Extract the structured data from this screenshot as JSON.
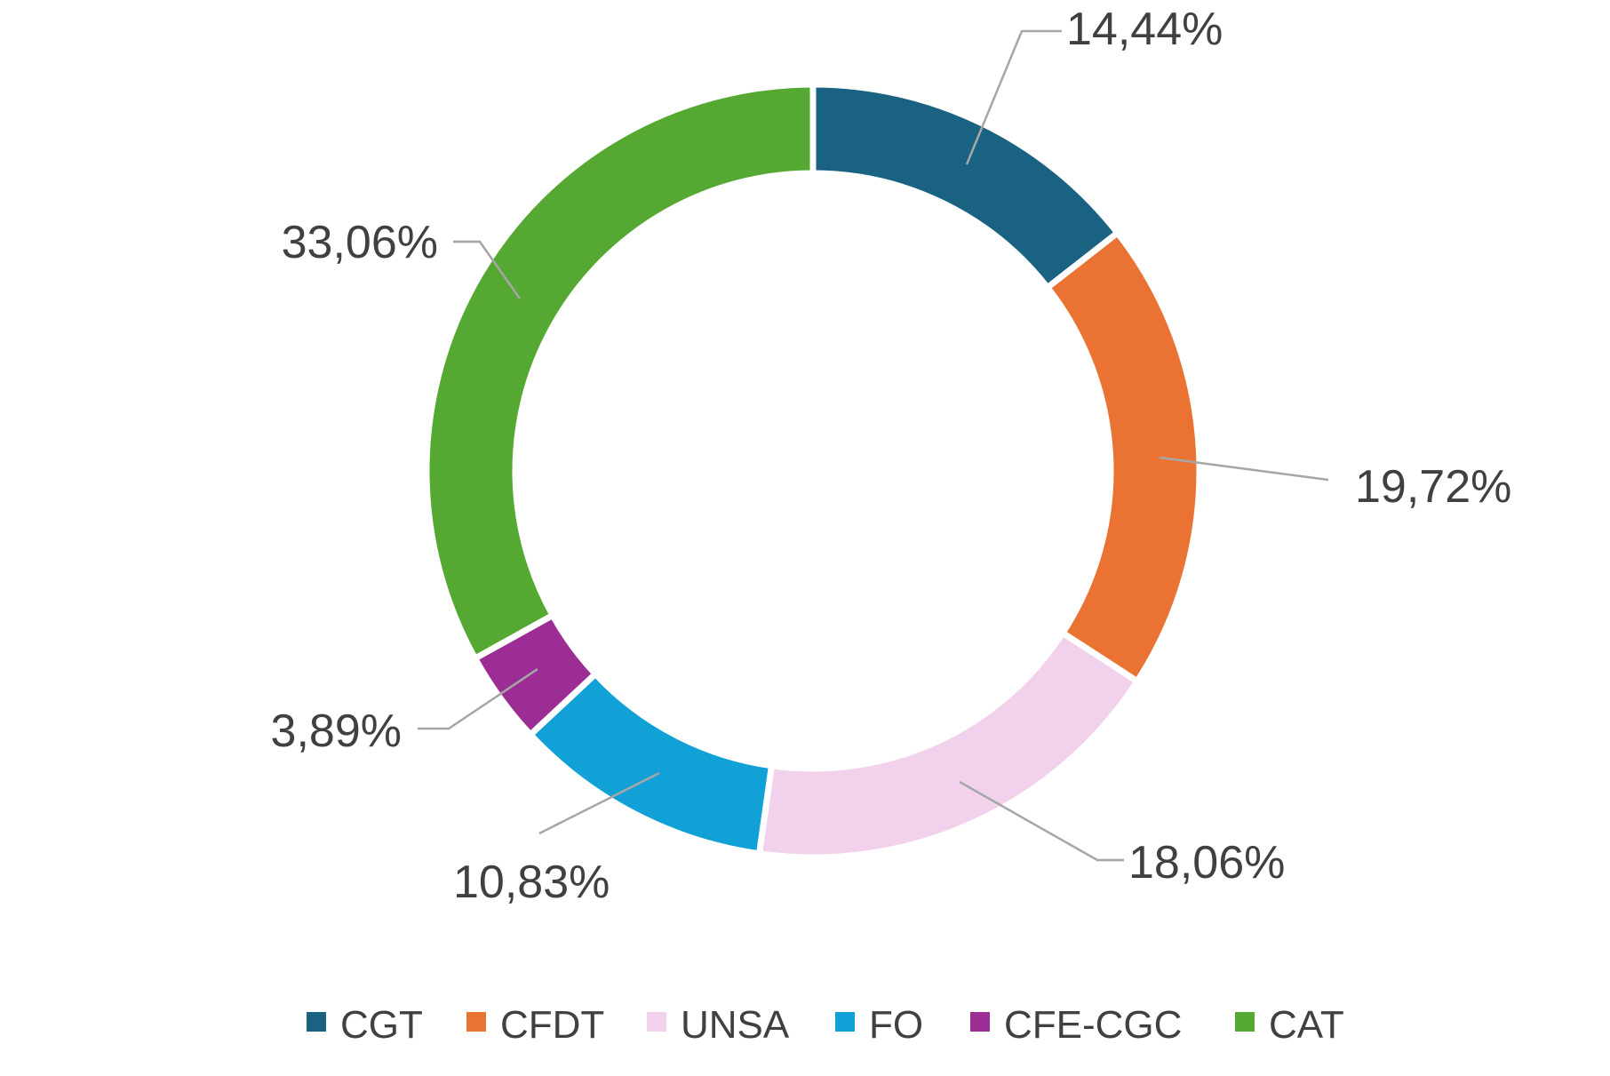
{
  "chart_data": {
    "type": "donut",
    "title": "",
    "categories": [
      "CGT",
      "CFDT",
      "UNSA",
      "FO",
      "CFE-CGC",
      "CAT"
    ],
    "values": [
      14.44,
      19.72,
      18.06,
      10.83,
      3.89,
      33.06
    ],
    "labels": [
      "14,44%",
      "19,72%",
      "18,06%",
      "10,83%",
      "3,89%",
      "33,06%"
    ],
    "colors": [
      "#1a6282",
      "#ea7333",
      "#f2d1ec",
      "#12a1d6",
      "#9c2d94",
      "#55a832"
    ],
    "legend": {
      "position": "bottom"
    }
  }
}
